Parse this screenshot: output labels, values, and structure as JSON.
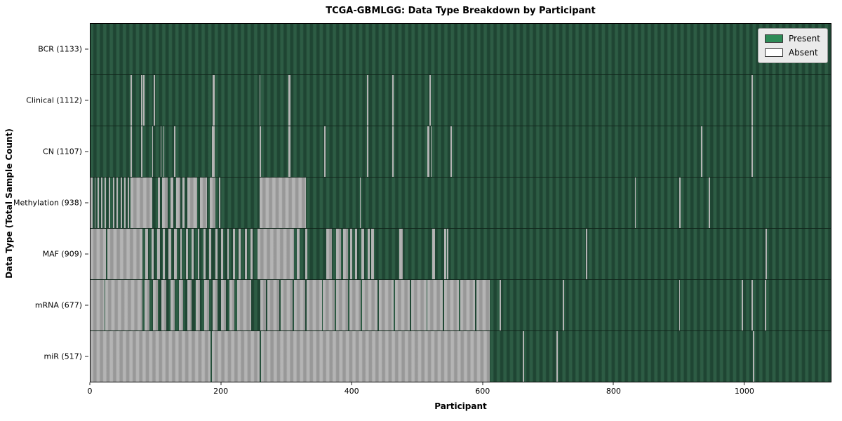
{
  "title_bar": {
    "title": "TCGA-GBMLGG: Data Type Breakdown by Participant"
  },
  "legend": {
    "items": [
      {
        "label": "Present",
        "color": "#2e8b57"
      },
      {
        "label": "Absent",
        "color": "#ffffff"
      }
    ]
  },
  "chart_data": {
    "type": "heatmap",
    "title": "TCGA-GBMLGG: Data Type Breakdown by Participant",
    "xlabel": "Participant",
    "ylabel": "Data Type (Total Sample Count)",
    "x_ticks": [
      0,
      200,
      400,
      600,
      800,
      1000
    ],
    "xlim": [
      0,
      1133
    ],
    "n_participants": 1133,
    "grid": false,
    "legend_position": "upper right",
    "cell_states": [
      "Present",
      "Absent"
    ],
    "colors": {
      "present_fill": "#2e8b57",
      "present_texture_light": "#2d5c44",
      "present_texture_dark": "#1f4533",
      "absent_fill": "#ffffff",
      "absent_texture_light": "#b4b4b4",
      "absent_texture_dark": "#989898"
    },
    "rows": [
      {
        "name": "BCR",
        "label": "BCR (1133)",
        "present_count": 1133,
        "absent_intervals": []
      },
      {
        "name": "Clinical",
        "label": "Clinical (1112)",
        "present_count": 1112,
        "absent_intervals": [
          [
            61,
            63
          ],
          [
            77,
            79
          ],
          [
            81,
            82
          ],
          [
            97,
            99
          ],
          [
            187,
            190
          ],
          [
            259,
            260
          ],
          [
            303,
            306
          ],
          [
            423,
            425
          ],
          [
            462,
            464
          ],
          [
            519,
            521
          ],
          [
            1012,
            1014
          ]
        ]
      },
      {
        "name": "CN",
        "label": "CN (1107)",
        "present_count": 1107,
        "absent_intervals": [
          [
            61,
            63
          ],
          [
            77,
            79
          ],
          [
            94,
            96
          ],
          [
            107,
            108
          ],
          [
            112,
            113
          ],
          [
            128,
            130
          ],
          [
            186,
            190
          ],
          [
            259,
            261
          ],
          [
            303,
            306
          ],
          [
            358,
            360
          ],
          [
            423,
            425
          ],
          [
            462,
            464
          ],
          [
            516,
            519
          ],
          [
            521,
            522
          ],
          [
            551,
            553
          ],
          [
            934,
            936
          ],
          [
            1012,
            1014
          ]
        ]
      },
      {
        "name": "Methylation",
        "label": "Methylation (938)",
        "present_count": 938,
        "absent_intervals": [
          [
            0,
            3
          ],
          [
            6,
            8
          ],
          [
            11,
            13
          ],
          [
            16,
            18
          ],
          [
            22,
            24
          ],
          [
            28,
            30
          ],
          [
            34,
            36
          ],
          [
            40,
            42
          ],
          [
            46,
            48
          ],
          [
            52,
            54
          ],
          [
            57,
            59
          ],
          [
            61,
            95
          ],
          [
            103,
            106
          ],
          [
            110,
            118
          ],
          [
            122,
            127
          ],
          [
            131,
            137
          ],
          [
            141,
            144
          ],
          [
            148,
            163
          ],
          [
            167,
            178
          ],
          [
            183,
            191
          ],
          [
            196,
            199
          ],
          [
            259,
            330
          ],
          [
            412,
            413
          ],
          [
            833,
            834
          ],
          [
            901,
            903
          ],
          [
            946,
            948
          ]
        ]
      },
      {
        "name": "MAF",
        "label": "MAF (909)",
        "present_count": 909,
        "absent_intervals": [
          [
            0,
            24
          ],
          [
            26,
            80
          ],
          [
            84,
            88
          ],
          [
            93,
            97
          ],
          [
            102,
            106
          ],
          [
            111,
            114
          ],
          [
            119,
            123
          ],
          [
            128,
            132
          ],
          [
            137,
            140
          ],
          [
            146,
            149
          ],
          [
            155,
            158
          ],
          [
            164,
            167
          ],
          [
            173,
            176
          ],
          [
            182,
            185
          ],
          [
            191,
            194
          ],
          [
            200,
            203
          ],
          [
            209,
            212
          ],
          [
            218,
            221
          ],
          [
            227,
            230
          ],
          [
            236,
            239
          ],
          [
            245,
            248
          ],
          [
            256,
            311
          ],
          [
            316,
            320
          ],
          [
            329,
            332
          ],
          [
            361,
            369
          ],
          [
            376,
            383
          ],
          [
            387,
            394
          ],
          [
            397,
            401
          ],
          [
            405,
            408
          ],
          [
            415,
            419
          ],
          [
            424,
            427
          ],
          [
            430,
            434
          ],
          [
            472,
            478
          ],
          [
            523,
            527
          ],
          [
            541,
            544
          ],
          [
            546,
            548
          ],
          [
            758,
            760
          ],
          [
            1033,
            1035
          ]
        ]
      },
      {
        "name": "mRNA",
        "label": "mRNA (677)",
        "present_count": 677,
        "absent_intervals": [
          [
            0,
            21
          ],
          [
            23,
            79
          ],
          [
            83,
            90
          ],
          [
            96,
            103
          ],
          [
            109,
            116
          ],
          [
            122,
            129
          ],
          [
            135,
            142
          ],
          [
            148,
            155
          ],
          [
            161,
            168
          ],
          [
            174,
            181
          ],
          [
            187,
            194
          ],
          [
            200,
            207
          ],
          [
            213,
            220
          ],
          [
            224,
            246
          ],
          [
            260,
            269
          ],
          [
            271,
            289
          ],
          [
            291,
            309
          ],
          [
            311,
            329
          ],
          [
            331,
            354
          ],
          [
            356,
            374
          ],
          [
            376,
            394
          ],
          [
            396,
            414
          ],
          [
            416,
            439
          ],
          [
            441,
            464
          ],
          [
            466,
            489
          ],
          [
            491,
            514
          ],
          [
            516,
            539
          ],
          [
            541,
            564
          ],
          [
            566,
            589
          ],
          [
            591,
            611
          ],
          [
            626,
            628
          ],
          [
            723,
            725
          ],
          [
            901,
            902
          ],
          [
            997,
            999
          ],
          [
            1012,
            1014
          ],
          [
            1032,
            1034
          ]
        ]
      },
      {
        "name": "miR",
        "label": "miR (517)",
        "present_count": 517,
        "absent_intervals": [
          [
            0,
            184
          ],
          [
            186,
            259
          ],
          [
            261,
            611
          ],
          [
            662,
            664
          ],
          [
            713,
            715
          ],
          [
            1014,
            1016
          ]
        ]
      }
    ]
  }
}
